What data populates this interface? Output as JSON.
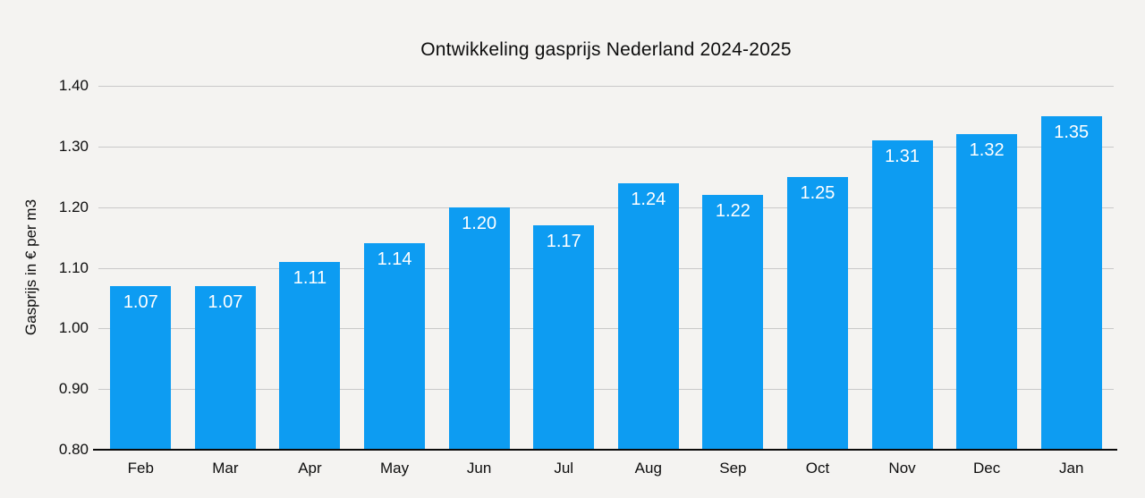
{
  "chart_data": {
    "type": "bar",
    "title": "Ontwikkeling gasprijs Nederland 2024-2025",
    "ylabel": "Gasprijs in € per m3",
    "xlabel": "",
    "categories": [
      "Feb",
      "Mar",
      "Apr",
      "May",
      "Jun",
      "Jul",
      "Aug",
      "Sep",
      "Oct",
      "Nov",
      "Dec",
      "Jan"
    ],
    "values": [
      1.07,
      1.07,
      1.11,
      1.14,
      1.2,
      1.17,
      1.24,
      1.22,
      1.25,
      1.31,
      1.32,
      1.35
    ],
    "value_labels": [
      "1.07",
      "1.07",
      "1.11",
      "1.14",
      "1.20",
      "1.17",
      "1.24",
      "1.22",
      "1.25",
      "1.31",
      "1.32",
      "1.35"
    ],
    "ylim": [
      0.8,
      1.4
    ],
    "ytick_labels": [
      "0.80",
      "0.90",
      "1.00",
      "1.10",
      "1.20",
      "1.30",
      "1.40"
    ],
    "grid": "horizontal",
    "legend_position": "none",
    "colors": {
      "bar": "#0d9cf2",
      "bar_label": "#ffffff",
      "background": "#f4f3f1",
      "gridline": "#c9c9c9",
      "axis": "#0a0a0a",
      "text": "#0d0d0d"
    }
  }
}
